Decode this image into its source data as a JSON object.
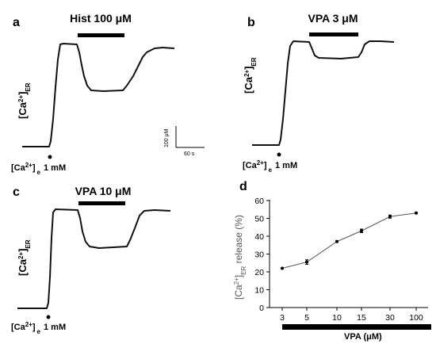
{
  "chart_data": [
    {
      "panel": "a",
      "type": "line",
      "treatment": "Hist 100 μM",
      "ylabel": "[Ca2+]ER",
      "stimulus": "[Ca2+] e 1 mM"
    },
    {
      "panel": "b",
      "type": "line",
      "treatment": "VPA 3 μM",
      "ylabel": "[Ca2+]ER",
      "stimulus": "[Ca2+] e 1 mM"
    },
    {
      "panel": "c",
      "type": "line",
      "treatment": "VPA 10 μM",
      "ylabel": "[Ca2+]ER",
      "stimulus": "[Ca2+] e 1 mM"
    },
    {
      "panel": "d",
      "type": "line",
      "categories": [
        "3",
        "5",
        "10",
        "15",
        "30",
        "100"
      ],
      "values": [
        22,
        25.5,
        37,
        43,
        51,
        53
      ],
      "errors": [
        0.3,
        1.3,
        0.4,
        1.0,
        0.9,
        0.3
      ],
      "xlabel": "VPA (μM)",
      "ylabel": "[Ca2+]ER release (%)",
      "ylim": [
        0,
        60
      ],
      "yticks": [
        0,
        10,
        20,
        30,
        40,
        50,
        60
      ]
    }
  ],
  "scale_bar": {
    "y_label": "100 μM",
    "x_label": "60 s"
  },
  "colors": {
    "line": "#111111",
    "panel_d_line": "#555555",
    "marker": "#000000"
  }
}
